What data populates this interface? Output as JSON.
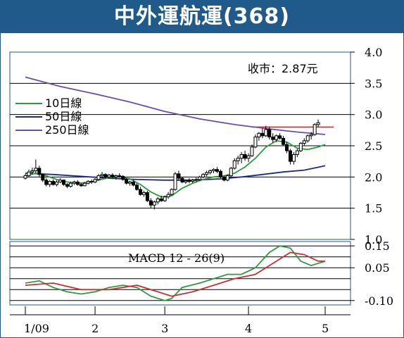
{
  "title": "中外運航運(368)",
  "chart_data": [
    {
      "type": "candlestick",
      "annotation": "收市：2.87元",
      "ylim": [
        1.0,
        4.0
      ],
      "yticks": [
        "4.0",
        "3.5",
        "3.0",
        "2.5",
        "2.0",
        "1.5",
        "1.0"
      ],
      "ytick_values": [
        4.0,
        3.5,
        3.0,
        2.5,
        2.0,
        1.5,
        1.0
      ],
      "xticks": [
        "1/09",
        "2",
        "3",
        "4",
        "5"
      ],
      "xtick_positions": [
        0,
        20,
        40,
        64,
        86
      ],
      "resistance_level": 2.8,
      "legend": [
        "10日線",
        "50日線",
        "250日線"
      ],
      "colors": {
        "ma10": "#2e9a3e",
        "ma50": "#1c2a8a",
        "ma250": "#6a4fa8",
        "resistance": "#c83232",
        "frame": "#1f5a8a"
      },
      "candles": [
        [
          1.98,
          2.05,
          1.96,
          2.02
        ],
        [
          2.02,
          2.12,
          2.0,
          2.08
        ],
        [
          2.08,
          2.15,
          2.04,
          2.1
        ],
        [
          2.1,
          2.28,
          2.06,
          2.14
        ],
        [
          2.14,
          2.18,
          2.0,
          2.04
        ],
        [
          2.04,
          2.06,
          1.92,
          1.95
        ],
        [
          1.95,
          1.98,
          1.85,
          1.88
        ],
        [
          1.88,
          1.95,
          1.84,
          1.93
        ],
        [
          1.93,
          1.96,
          1.86,
          1.88
        ],
        [
          1.88,
          1.95,
          1.85,
          1.92
        ],
        [
          1.92,
          1.98,
          1.9,
          1.95
        ],
        [
          1.95,
          1.96,
          1.86,
          1.88
        ],
        [
          1.88,
          1.9,
          1.82,
          1.85
        ],
        [
          1.85,
          1.92,
          1.83,
          1.9
        ],
        [
          1.9,
          1.94,
          1.87,
          1.92
        ],
        [
          1.92,
          1.95,
          1.86,
          1.88
        ],
        [
          1.88,
          1.9,
          1.84,
          1.86
        ],
        [
          1.86,
          1.92,
          1.85,
          1.9
        ],
        [
          1.9,
          1.95,
          1.88,
          1.93
        ],
        [
          1.93,
          1.96,
          1.89,
          1.92
        ],
        [
          1.92,
          1.98,
          1.9,
          1.96
        ],
        [
          1.96,
          2.05,
          1.94,
          2.02
        ],
        [
          2.02,
          2.08,
          1.98,
          2.04
        ],
        [
          2.04,
          2.06,
          1.97,
          2.0
        ],
        [
          2.0,
          2.05,
          1.98,
          2.03
        ],
        [
          2.03,
          2.06,
          1.98,
          2.0
        ],
        [
          2.0,
          2.04,
          1.96,
          2.02
        ],
        [
          2.02,
          2.06,
          1.99,
          2.01
        ],
        [
          2.01,
          2.03,
          1.94,
          1.96
        ],
        [
          1.96,
          1.98,
          1.88,
          1.9
        ],
        [
          1.9,
          1.94,
          1.86,
          1.92
        ],
        [
          1.92,
          1.95,
          1.85,
          1.87
        ],
        [
          1.87,
          1.9,
          1.78,
          1.8
        ],
        [
          1.8,
          1.84,
          1.7,
          1.72
        ],
        [
          1.72,
          1.78,
          1.68,
          1.75
        ],
        [
          1.75,
          1.78,
          1.6,
          1.62
        ],
        [
          1.62,
          1.66,
          1.5,
          1.55
        ],
        [
          1.55,
          1.62,
          1.48,
          1.6
        ],
        [
          1.6,
          1.68,
          1.56,
          1.65
        ],
        [
          1.65,
          1.7,
          1.6,
          1.62
        ],
        [
          1.62,
          1.7,
          1.6,
          1.68
        ],
        [
          1.68,
          1.76,
          1.65,
          1.72
        ],
        [
          1.72,
          1.82,
          1.7,
          1.8
        ],
        [
          1.8,
          2.08,
          1.78,
          2.05
        ],
        [
          2.05,
          2.1,
          1.95,
          1.98
        ],
        [
          1.98,
          2.0,
          1.9,
          1.92
        ],
        [
          1.92,
          1.96,
          1.89,
          1.94
        ],
        [
          1.94,
          1.98,
          1.9,
          1.93
        ],
        [
          1.93,
          1.97,
          1.9,
          1.95
        ],
        [
          1.95,
          1.99,
          1.92,
          1.96
        ],
        [
          1.96,
          2.02,
          1.94,
          2.0
        ],
        [
          2.0,
          2.06,
          1.98,
          2.04
        ],
        [
          2.04,
          2.1,
          2.01,
          2.07
        ],
        [
          2.07,
          2.12,
          2.04,
          2.1
        ],
        [
          2.1,
          2.14,
          2.06,
          2.12
        ],
        [
          2.12,
          2.16,
          2.06,
          2.09
        ],
        [
          2.09,
          2.12,
          1.98,
          2.0
        ],
        [
          2.0,
          2.02,
          1.93,
          1.95
        ],
        [
          1.95,
          2.04,
          1.93,
          2.02
        ],
        [
          2.02,
          2.16,
          2.0,
          2.14
        ],
        [
          2.14,
          2.3,
          2.12,
          2.26
        ],
        [
          2.26,
          2.34,
          2.2,
          2.3
        ],
        [
          2.3,
          2.4,
          2.22,
          2.36
        ],
        [
          2.36,
          2.42,
          2.26,
          2.3
        ],
        [
          2.3,
          2.38,
          2.24,
          2.34
        ],
        [
          2.34,
          2.52,
          2.32,
          2.48
        ],
        [
          2.48,
          2.68,
          2.46,
          2.64
        ],
        [
          2.64,
          2.72,
          2.58,
          2.7
        ],
        [
          2.7,
          2.78,
          2.62,
          2.66
        ],
        [
          2.66,
          2.82,
          2.64,
          2.76
        ],
        [
          2.76,
          2.8,
          2.6,
          2.64
        ],
        [
          2.64,
          2.7,
          2.55,
          2.6
        ],
        [
          2.6,
          2.68,
          2.56,
          2.66
        ],
        [
          2.66,
          2.7,
          2.6,
          2.62
        ],
        [
          2.62,
          2.66,
          2.5,
          2.52
        ],
        [
          2.52,
          2.56,
          2.38,
          2.42
        ],
        [
          2.42,
          2.45,
          2.2,
          2.25
        ],
        [
          2.25,
          2.4,
          2.2,
          2.36
        ],
        [
          2.36,
          2.45,
          2.32,
          2.42
        ],
        [
          2.42,
          2.56,
          2.4,
          2.54
        ],
        [
          2.54,
          2.62,
          2.5,
          2.58
        ],
        [
          2.58,
          2.68,
          2.55,
          2.66
        ],
        [
          2.66,
          2.72,
          2.6,
          2.68
        ],
        [
          2.68,
          2.86,
          2.66,
          2.84
        ],
        [
          2.84,
          2.92,
          2.8,
          2.87
        ]
      ],
      "ma10": [
        [
          0,
          2.02
        ],
        [
          3,
          2.06
        ],
        [
          6,
          2.02
        ],
        [
          9,
          1.96
        ],
        [
          12,
          1.92
        ],
        [
          15,
          1.9
        ],
        [
          18,
          1.91
        ],
        [
          21,
          1.95
        ],
        [
          24,
          1.99
        ],
        [
          27,
          2.0
        ],
        [
          30,
          1.97
        ],
        [
          33,
          1.88
        ],
        [
          36,
          1.76
        ],
        [
          39,
          1.68
        ],
        [
          42,
          1.7
        ],
        [
          45,
          1.82
        ],
        [
          48,
          1.9
        ],
        [
          51,
          1.96
        ],
        [
          54,
          2.0
        ],
        [
          57,
          2.02
        ],
        [
          60,
          2.06
        ],
        [
          63,
          2.16
        ],
        [
          66,
          2.3
        ],
        [
          69,
          2.48
        ],
        [
          72,
          2.58
        ],
        [
          75,
          2.56
        ],
        [
          78,
          2.46
        ],
        [
          81,
          2.44
        ],
        [
          84,
          2.48
        ],
        [
          86,
          2.52
        ]
      ],
      "ma50": [
        [
          0,
          2.06
        ],
        [
          8,
          2.04
        ],
        [
          16,
          2.01
        ],
        [
          24,
          1.98
        ],
        [
          32,
          1.96
        ],
        [
          40,
          1.95
        ],
        [
          48,
          1.95
        ],
        [
          56,
          1.97
        ],
        [
          62,
          2.0
        ],
        [
          68,
          2.04
        ],
        [
          74,
          2.08
        ],
        [
          80,
          2.11
        ],
        [
          86,
          2.18
        ]
      ],
      "ma250": [
        [
          0,
          3.6
        ],
        [
          10,
          3.45
        ],
        [
          20,
          3.33
        ],
        [
          30,
          3.2
        ],
        [
          40,
          3.05
        ],
        [
          50,
          2.93
        ],
        [
          60,
          2.84
        ],
        [
          70,
          2.77
        ],
        [
          78,
          2.72
        ],
        [
          86,
          2.68
        ]
      ]
    },
    {
      "type": "line",
      "title": "MACD 12 - 26(9)",
      "ylim": [
        -0.12,
        0.17
      ],
      "yticks": [
        "0.15",
        "0.05",
        "-0.10"
      ],
      "ytick_values": [
        0.15,
        0.05,
        -0.1
      ],
      "gridlines": [
        0.15,
        0.1,
        0.05,
        0.0,
        -0.05,
        -0.1
      ],
      "series": [
        {
          "color": "#2e9a3e",
          "values": [
            [
              0,
              -0.02
            ],
            [
              4,
              -0.01
            ],
            [
              8,
              -0.04
            ],
            [
              12,
              -0.06
            ],
            [
              16,
              -0.07
            ],
            [
              20,
              -0.06
            ],
            [
              24,
              -0.04
            ],
            [
              28,
              -0.03
            ],
            [
              32,
              -0.04
            ],
            [
              36,
              -0.08
            ],
            [
              40,
              -0.1
            ],
            [
              42,
              -0.09
            ],
            [
              45,
              -0.04
            ],
            [
              50,
              -0.02
            ],
            [
              54,
              0.0
            ],
            [
              58,
              0.02
            ],
            [
              62,
              0.02
            ],
            [
              66,
              0.05
            ],
            [
              70,
              0.12
            ],
            [
              73,
              0.15
            ],
            [
              76,
              0.14
            ],
            [
              79,
              0.08
            ],
            [
              82,
              0.06
            ],
            [
              86,
              0.08
            ]
          ]
        },
        {
          "color": "#c83232",
          "values": [
            [
              0,
              -0.03
            ],
            [
              8,
              -0.02
            ],
            [
              16,
              -0.05
            ],
            [
              24,
              -0.05
            ],
            [
              32,
              -0.03
            ],
            [
              38,
              -0.06
            ],
            [
              42,
              -0.08
            ],
            [
              48,
              -0.06
            ],
            [
              54,
              -0.03
            ],
            [
              60,
              0.0
            ],
            [
              66,
              0.02
            ],
            [
              72,
              0.08
            ],
            [
              76,
              0.12
            ],
            [
              80,
              0.11
            ],
            [
              84,
              0.08
            ],
            [
              86,
              0.08
            ]
          ]
        }
      ]
    }
  ]
}
